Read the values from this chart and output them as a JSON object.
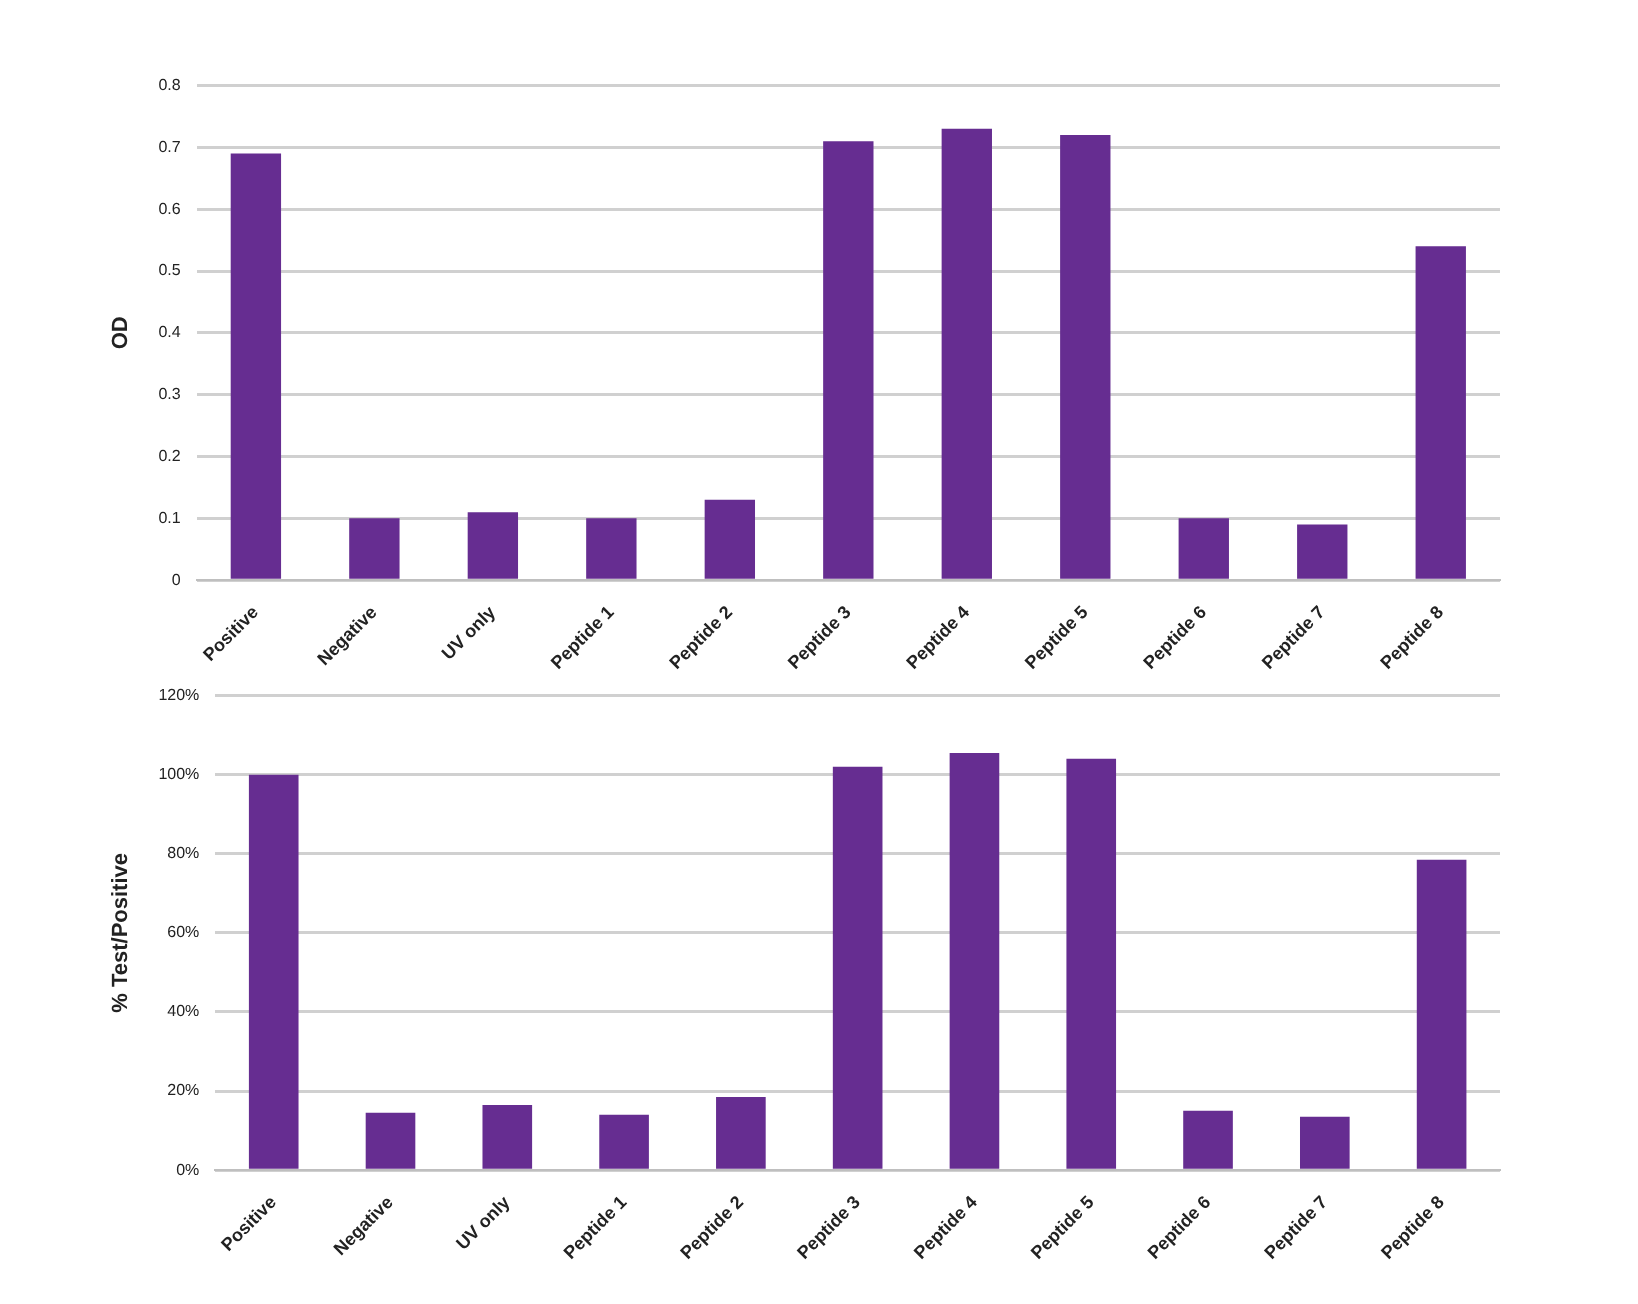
{
  "chart_data": [
    {
      "type": "bar",
      "ylabel": "OD",
      "categories": [
        "Positive",
        "Negative",
        "UV only",
        "Peptide 1",
        "Peptide 2",
        "Peptide 3",
        "Peptide 4",
        "Peptide 5",
        "Peptide 6",
        "Peptide 7",
        "Peptide 8"
      ],
      "values": [
        0.69,
        0.1,
        0.11,
        0.1,
        0.13,
        0.71,
        0.73,
        0.72,
        0.1,
        0.09,
        0.54
      ],
      "color": "#662d91",
      "ylim": [
        0,
        0.8
      ],
      "yticks": [
        0,
        0.1,
        0.2,
        0.3,
        0.4,
        0.5,
        0.6,
        0.7,
        0.8
      ],
      "grid": "y",
      "legend": false
    },
    {
      "type": "bar",
      "ylabel": "% Test/Positive",
      "categories": [
        "Positive",
        "Negative",
        "UV only",
        "Peptide 1",
        "Peptide 2",
        "Peptide 3",
        "Peptide 4",
        "Peptide 5",
        "Peptide 6",
        "Peptide 7",
        "Peptide 8"
      ],
      "values": [
        100,
        14.5,
        16.5,
        14,
        18.5,
        102,
        105.5,
        104,
        15,
        13.5,
        78.5
      ],
      "color": "#662d91",
      "ylim": [
        0,
        120
      ],
      "yticks": [
        {
          "value": 0,
          "label": "0%"
        },
        {
          "value": 20,
          "label": "20%"
        },
        {
          "value": 40,
          "label": "40%"
        },
        {
          "value": 60,
          "label": "60%"
        },
        {
          "value": 80,
          "label": "80%"
        },
        {
          "value": 100,
          "label": "100%"
        },
        {
          "value": 120,
          "label": "120%"
        }
      ],
      "grid": "y",
      "legend": false
    }
  ]
}
